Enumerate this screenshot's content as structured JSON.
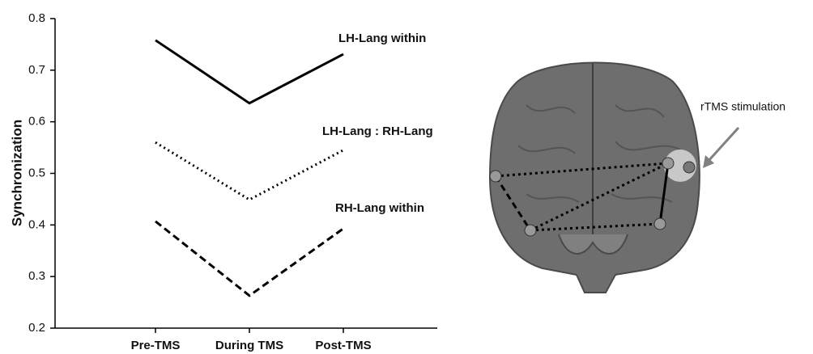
{
  "chart_data": {
    "type": "line",
    "y_label": "Synchronization",
    "categories": [
      "Pre-TMS",
      "During TMS",
      "Post-TMS"
    ],
    "series": [
      {
        "name": "LH-Lang within",
        "color": "#000000",
        "style": "solid",
        "values": [
          0.758,
          0.636,
          0.731
        ]
      },
      {
        "name": "LH-Lang : RH-Lang",
        "color": "#000000",
        "style": "dotted",
        "values": [
          0.56,
          0.449,
          0.545
        ]
      },
      {
        "name": "RH-Lang within",
        "color": "#000000",
        "style": "dashed",
        "values": [
          0.407,
          0.263,
          0.393
        ]
      }
    ],
    "ylim": [
      0.2,
      0.8
    ],
    "yticks": [
      0.2,
      0.3,
      0.4,
      0.5,
      0.6,
      0.7,
      0.8
    ],
    "annotation": "rTMS stimulation"
  }
}
